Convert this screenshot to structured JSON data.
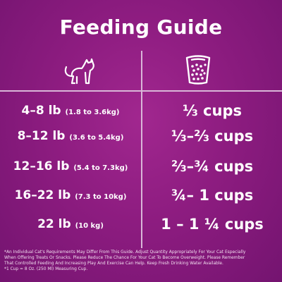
{
  "title": "Feeding Guide",
  "icons": {
    "left_header": "cat-icon",
    "right_header": "measuring-cup-icon"
  },
  "colors": {
    "background": "#8d1c80",
    "text": "#ffffff",
    "divider": "#d9b7d8"
  },
  "rows": [
    {
      "weight": "4–8 lb",
      "metric": "(1.8 to 3.6kg)",
      "amount": "⅓ cups"
    },
    {
      "weight": "8–12 lb",
      "metric": "(3.6 to 5.4kg)",
      "amount": "⅓–⅔ cups"
    },
    {
      "weight": "12–16 lb",
      "metric": "(5.4 to 7.3kg)",
      "amount": "⅔–¾ cups"
    },
    {
      "weight": "16–22 lb",
      "metric": "(7.3 to 10kg)",
      "amount": "¾– 1 cups"
    },
    {
      "weight": "22 lb",
      "metric": "(10 kg)",
      "amount": "1 – 1 ¼ cups"
    }
  ],
  "footnote": {
    "line1": "*An Individual Cat's Requirements May Differ From This Guide. Adjust Quantity Appropriately For Your Cat Especially",
    "line2": "When Offering Treats Or Snacks. Please Reduce The Chance For Your Cat To Become Overweight. Please Remember",
    "line3": "That Controlled Feeding And Increasing Play And Exercise Can Help. Keep Fresh Drinking Water Available.",
    "line4": "*1 Cup = 8 Oz. (250 Ml) Measuring Cup."
  }
}
